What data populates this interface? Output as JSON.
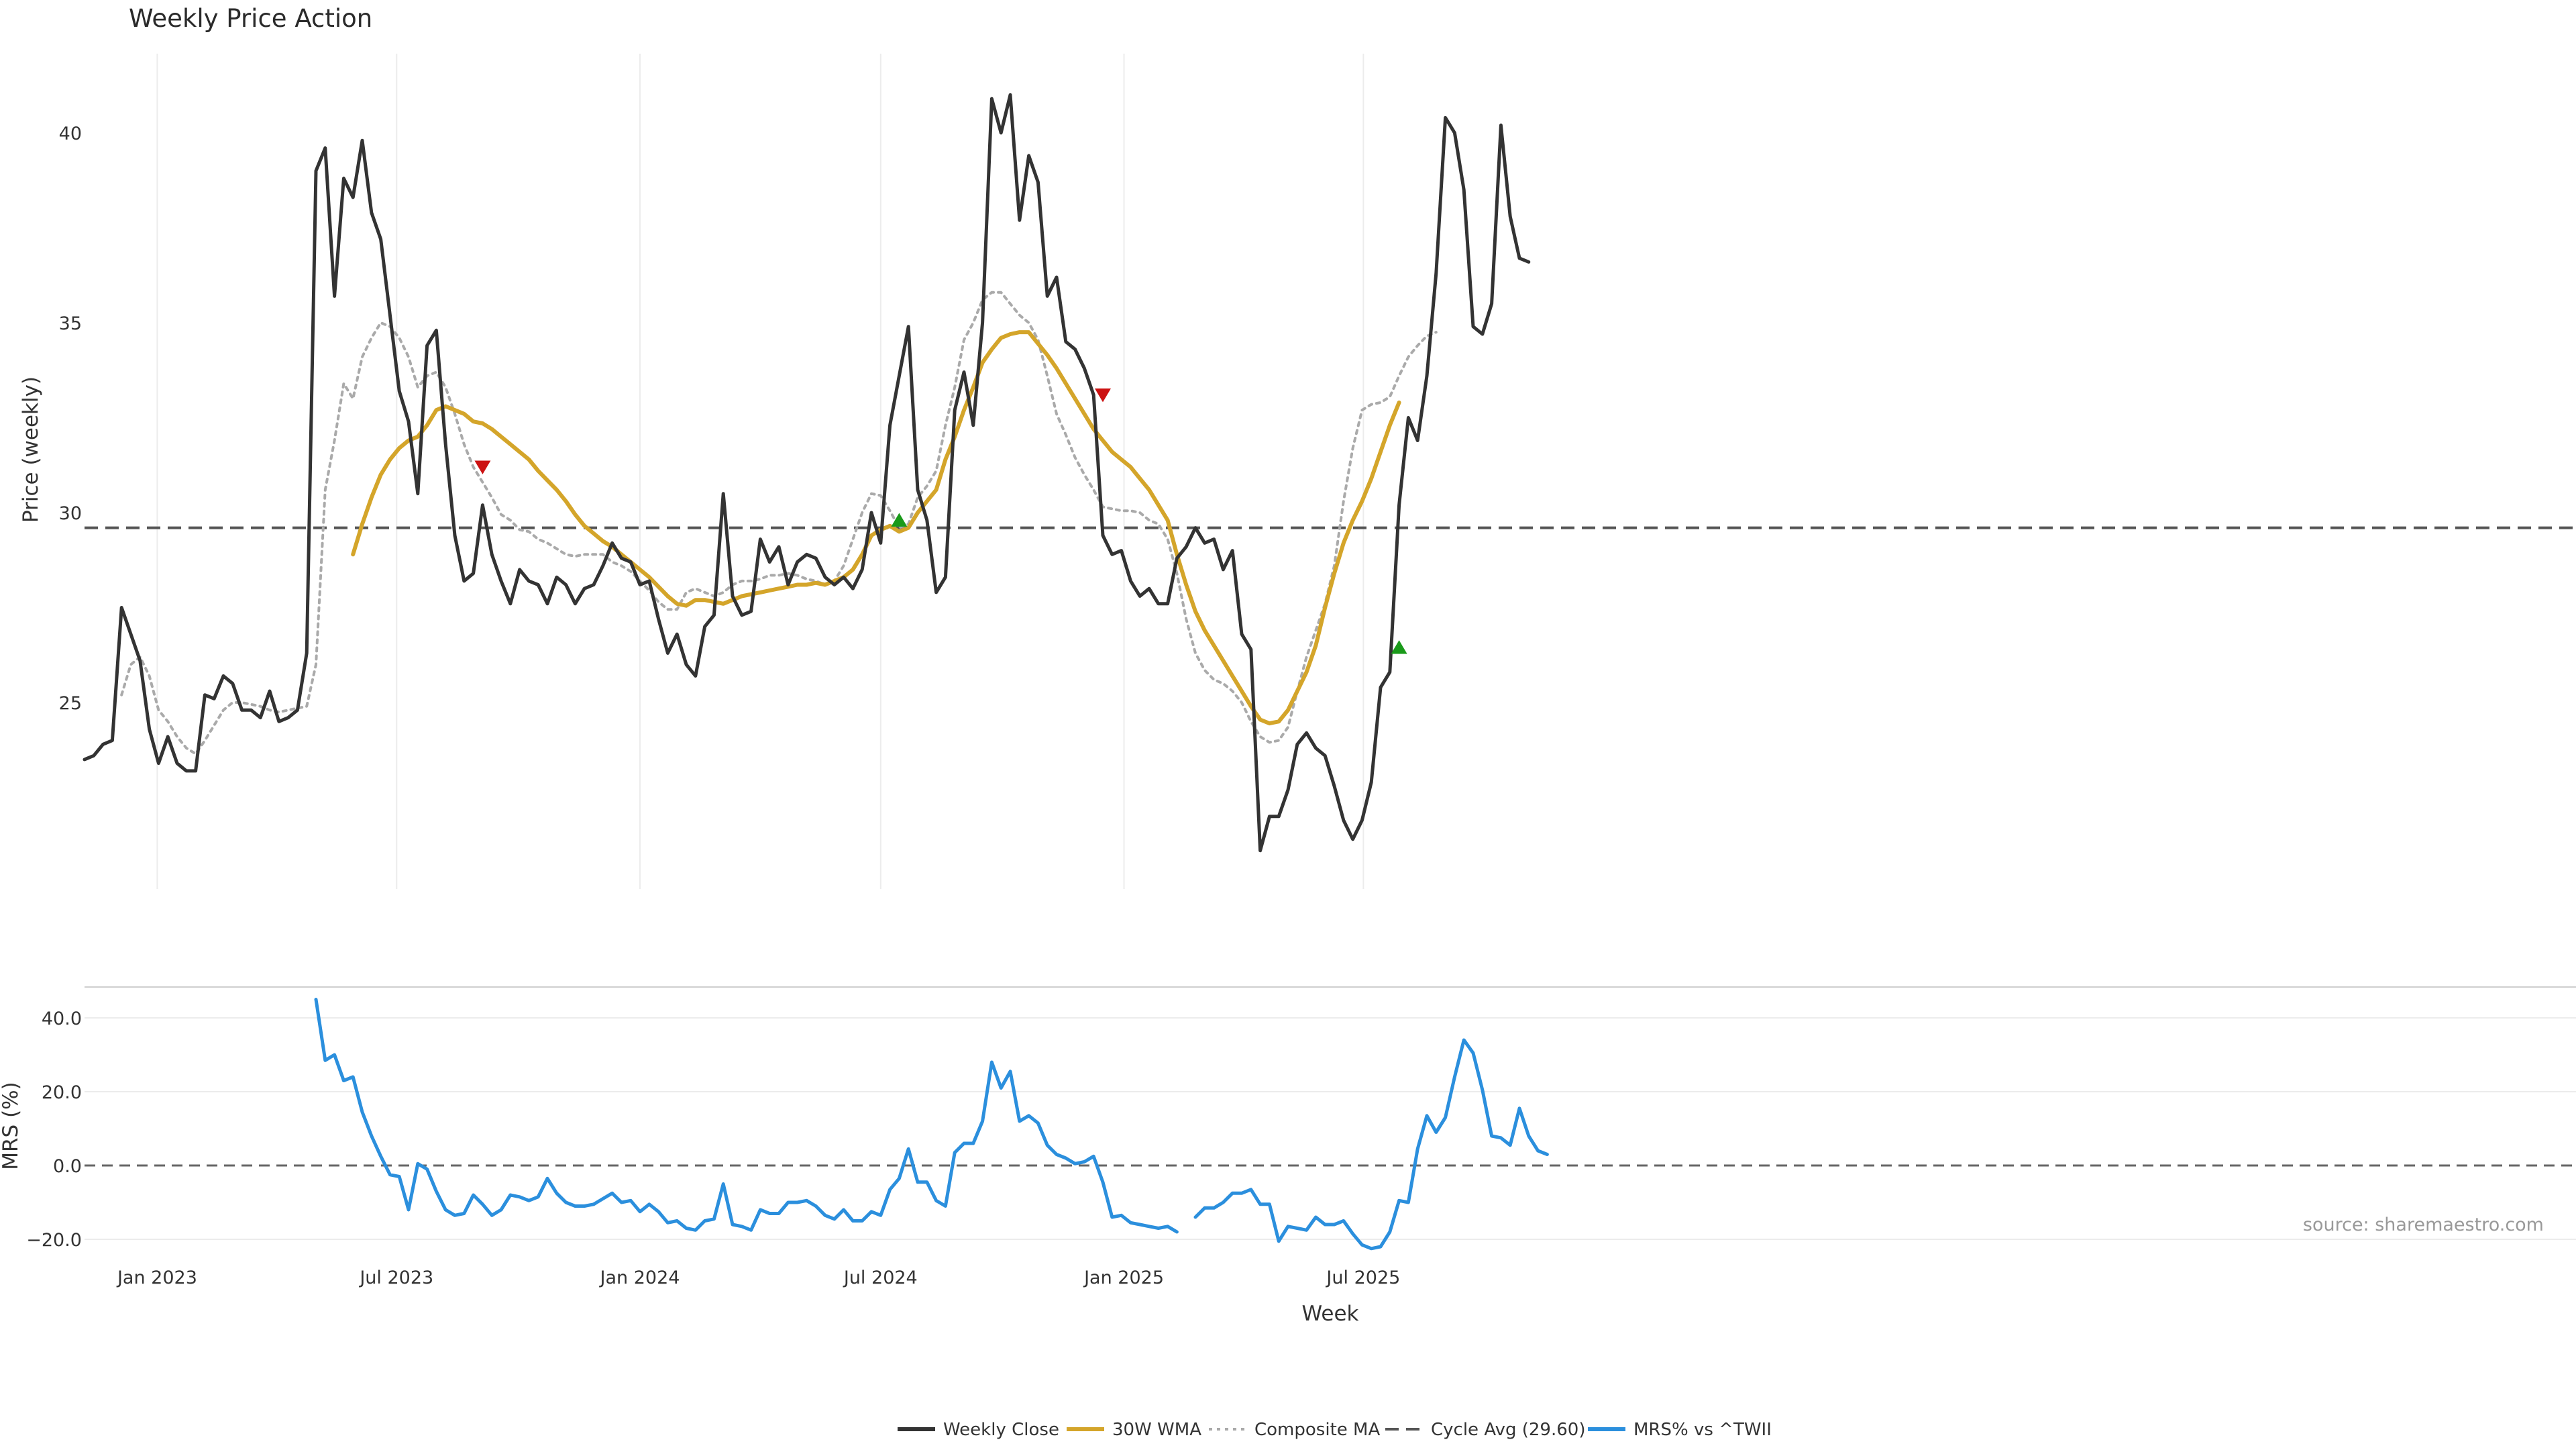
{
  "chart_data": {
    "title": "Weekly Price Action",
    "source_note": "source: sharemaestro.com",
    "xlabel": "Week",
    "x_ticks": [
      "Jan 2023",
      "Jul 2023",
      "Jan 2024",
      "Jul 2024",
      "Jan 2025",
      "Jul 2025"
    ],
    "price_panel": {
      "type": "line",
      "ylabel": "Price (weekly)",
      "ylim": [
        20.2,
        42.2
      ],
      "yticks": [
        25,
        30,
        35,
        40
      ],
      "grid": "vertical",
      "cycle_avg": 29.6,
      "series": [
        {
          "name": "Weekly Close",
          "color": "#333333",
          "style": "solid",
          "start_week": "2022-11-07",
          "values": [
            23.5,
            23.6,
            23.9,
            24.0,
            27.5,
            26.8,
            26.1,
            24.3,
            23.4,
            24.1,
            23.4,
            23.2,
            23.2,
            25.2,
            25.1,
            25.7,
            25.5,
            24.8,
            24.8,
            24.6,
            25.3,
            24.5,
            24.6,
            24.8,
            26.3,
            39.0,
            39.6,
            35.7,
            38.8,
            38.3,
            39.8,
            37.9,
            37.2,
            35.2,
            33.2,
            32.4,
            30.5,
            34.4,
            34.8,
            31.8,
            29.4,
            28.2,
            28.4,
            30.2,
            28.9,
            28.2,
            27.6,
            28.5,
            28.2,
            28.1,
            27.6,
            28.3,
            28.1,
            27.6,
            28.0,
            28.1,
            28.6,
            29.2,
            28.8,
            28.7,
            28.1,
            28.2,
            27.2,
            26.3,
            26.8,
            26.0,
            25.7,
            27.0,
            27.3,
            30.5,
            27.8,
            27.3,
            27.4,
            29.3,
            28.7,
            29.1,
            28.1,
            28.7,
            28.9,
            28.8,
            28.3,
            28.1,
            28.3,
            28.0,
            28.5,
            30.0,
            29.2,
            32.3,
            33.6,
            34.9,
            30.6,
            29.8,
            27.9,
            28.3,
            32.7,
            33.7,
            32.3,
            35.0,
            40.9,
            40.0,
            41.0,
            37.7,
            39.4,
            38.7,
            35.7,
            36.2,
            34.5,
            34.3,
            33.8,
            33.1,
            29.4,
            28.9,
            29.0,
            28.2,
            27.8,
            28.0,
            27.6,
            27.6,
            28.8,
            29.1,
            29.6,
            29.2,
            29.3,
            28.5,
            29.0,
            26.8,
            26.4,
            21.1,
            22.0,
            22.0,
            22.7,
            23.9,
            24.2,
            23.8,
            23.6,
            22.8,
            21.9,
            21.4,
            21.9,
            22.9,
            25.4,
            25.8,
            30.2,
            32.5,
            31.9,
            33.6,
            36.3,
            40.4,
            40.0,
            38.5,
            34.9,
            34.7,
            35.5,
            40.2,
            37.8,
            36.7,
            36.6
          ]
        },
        {
          "name": "30W WMA",
          "color": "#d4a52a",
          "style": "solid",
          "start_index": 29,
          "values": [
            28.9,
            29.7,
            30.4,
            31.0,
            31.4,
            31.7,
            31.9,
            32.0,
            32.3,
            32.7,
            32.8,
            32.7,
            32.6,
            32.4,
            32.35,
            32.2,
            32.0,
            31.8,
            31.6,
            31.4,
            31.1,
            30.85,
            30.6,
            30.3,
            29.95,
            29.65,
            29.45,
            29.25,
            29.1,
            28.9,
            28.7,
            28.5,
            28.3,
            28.05,
            27.8,
            27.6,
            27.55,
            27.7,
            27.7,
            27.65,
            27.6,
            27.7,
            27.8,
            27.85,
            27.9,
            27.95,
            28.0,
            28.05,
            28.1,
            28.1,
            28.15,
            28.1,
            28.2,
            28.3,
            28.5,
            28.9,
            29.4,
            29.55,
            29.65,
            29.5,
            29.6,
            30.0,
            30.3,
            30.6,
            31.4,
            32.0,
            32.7,
            33.3,
            33.95,
            34.3,
            34.6,
            34.7,
            34.75,
            34.75,
            34.45,
            34.15,
            33.8,
            33.4,
            33.0,
            32.6,
            32.2,
            31.9,
            31.6,
            31.4,
            31.2,
            30.9,
            30.6,
            30.2,
            29.8,
            28.9,
            28.1,
            27.4,
            26.9,
            26.5,
            26.1,
            25.7,
            25.3,
            24.9,
            24.55,
            24.45,
            24.5,
            24.8,
            25.3,
            25.8,
            26.5,
            27.5,
            28.4,
            29.2,
            29.8,
            30.3,
            30.9,
            31.6,
            32.3,
            32.9
          ]
        },
        {
          "name": "Composite MA",
          "color": "#aaaaaa",
          "style": "dotted",
          "start_index": 4,
          "values": [
            25.2,
            26.0,
            26.2,
            25.7,
            24.8,
            24.5,
            24.1,
            23.8,
            23.65,
            24.0,
            24.4,
            24.8,
            25.0,
            25.0,
            24.95,
            24.9,
            24.8,
            24.75,
            24.8,
            24.85,
            24.9,
            26.0,
            30.6,
            31.9,
            33.4,
            33.0,
            34.1,
            34.6,
            35.0,
            34.9,
            34.6,
            34.1,
            33.3,
            33.6,
            33.7,
            33.3,
            32.6,
            31.8,
            31.2,
            30.8,
            30.4,
            29.95,
            29.8,
            29.55,
            29.5,
            29.3,
            29.2,
            29.05,
            28.9,
            28.85,
            28.9,
            28.9,
            28.9,
            28.7,
            28.6,
            28.45,
            28.2,
            27.95,
            27.65,
            27.45,
            27.45,
            27.9,
            28.0,
            27.9,
            27.8,
            27.9,
            28.1,
            28.2,
            28.2,
            28.25,
            28.35,
            28.35,
            28.4,
            28.35,
            28.25,
            28.2,
            28.1,
            28.2,
            28.6,
            29.3,
            30.0,
            30.5,
            30.45,
            30.05,
            29.6,
            29.7,
            30.4,
            30.7,
            31.1,
            32.3,
            33.3,
            34.55,
            35.0,
            35.6,
            35.8,
            35.8,
            35.5,
            35.2,
            35.0,
            34.55,
            33.6,
            32.6,
            32.05,
            31.45,
            31.0,
            30.6,
            30.15,
            30.1,
            30.05,
            30.05,
            30.0,
            29.8,
            29.7,
            29.3,
            28.4,
            27.2,
            26.3,
            25.85,
            25.6,
            25.5,
            25.3,
            25.0,
            24.5,
            24.1,
            23.95,
            24.0,
            24.35,
            25.3,
            26.2,
            26.9,
            27.6,
            28.6,
            30.3,
            31.7,
            32.7,
            32.85,
            32.9,
            33.05,
            33.6,
            34.1,
            34.4,
            34.65,
            34.75
          ]
        }
      ],
      "markers": [
        {
          "type": "sell",
          "symbol": "triangle-down",
          "color": "#cc1111",
          "index": 43,
          "value": 31.2
        },
        {
          "type": "buy",
          "symbol": "triangle-up",
          "color": "#1a9a1a",
          "index": 88,
          "value": 29.8
        },
        {
          "type": "sell",
          "symbol": "triangle-down",
          "color": "#cc1111",
          "index": 110,
          "value": 33.1
        },
        {
          "type": "buy",
          "symbol": "triangle-up",
          "color": "#1a9a1a",
          "index": 142,
          "value": 26.45
        }
      ]
    },
    "mrs_panel": {
      "type": "line",
      "ylabel": "MRS (%)",
      "ylim": [
        -23,
        48
      ],
      "yticks": [
        40,
        20,
        0,
        -20
      ],
      "tick_labels": [
        "40.0",
        "20.0",
        "0.0",
        "−20.0"
      ],
      "zero_line": 0,
      "series": [
        {
          "name": "MRS% vs ^TWII",
          "color": "#2b8fdd",
          "style": "solid",
          "start_index": 25,
          "values": [
            45,
            28.5,
            30,
            23,
            24,
            14.5,
            8,
            2.5,
            -2.5,
            -3,
            -12,
            0.5,
            -1,
            -7,
            -12,
            -13.5,
            -13,
            -8,
            -10.5,
            -13.5,
            -12,
            -8,
            -8.5,
            -9.5,
            -8.5,
            -3.5,
            -7.5,
            -10,
            -11,
            -11,
            -10.5,
            -9,
            -7.5,
            -10,
            -9.5,
            -12.5,
            -10.5,
            -12.5,
            -15.5,
            -15,
            -17,
            -17.5,
            -15,
            -14.5,
            -5,
            -16,
            -16.5,
            -17.5,
            -12,
            -13,
            -13,
            -10,
            -10,
            -9.5,
            -11,
            -13.5,
            -14.5,
            -12,
            -15,
            -15,
            -12.5,
            -13.5,
            -6.5,
            -3.5,
            4.5,
            -4.5,
            -4.5,
            -9.5,
            -11,
            3.5,
            6,
            6,
            12,
            28,
            21,
            25.5,
            12,
            13.5,
            11.5,
            5.5,
            3,
            2,
            0.5,
            1,
            2.5,
            -4.5,
            -14,
            -13.5,
            -15.5,
            -16,
            -16.5,
            -17,
            -16.5,
            -18,
            null,
            -14,
            -11.5,
            -11.5,
            -10,
            -7.5,
            -7.5,
            -6.5,
            -10.5,
            -10.5,
            -20.5,
            -16.5,
            -17,
            -17.5,
            -14,
            -16,
            -16,
            -15,
            -18.5,
            -21.5,
            -22.5,
            -22,
            -18,
            -9.5,
            -10,
            4.5,
            13.5,
            9,
            13,
            24,
            34,
            30.5,
            20.5,
            8,
            7.5,
            5.5,
            15.5,
            8,
            4,
            3
          ]
        }
      ]
    },
    "legend": {
      "placement": "bottom-center",
      "items": [
        {
          "label": "Weekly Close",
          "color": "#333333",
          "style": "solid"
        },
        {
          "label": "30W WMA",
          "color": "#d4a52a",
          "style": "solid"
        },
        {
          "label": "Composite MA",
          "color": "#aaaaaa",
          "style": "dotted"
        },
        {
          "label": "Cycle Avg (29.60)",
          "color": "#555555",
          "style": "dashed"
        },
        {
          "label": "MRS% vs ^TWII",
          "color": "#2b8fdd",
          "style": "solid"
        }
      ]
    }
  }
}
